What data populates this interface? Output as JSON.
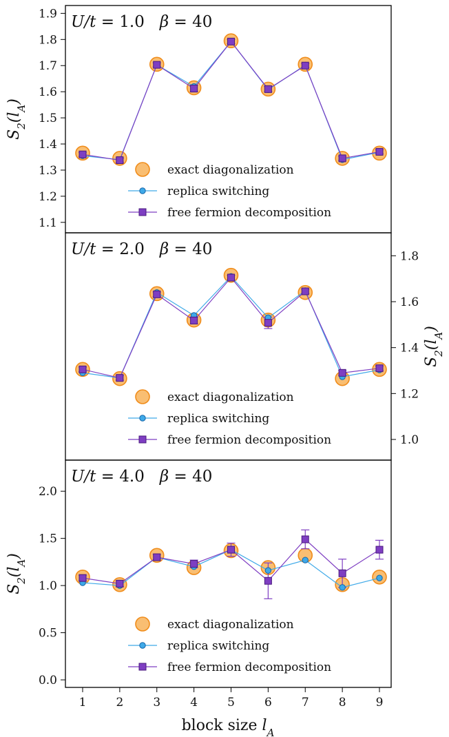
{
  "colors": {
    "ed_fill": "#f9be72",
    "ed_stroke": "#f08c1a",
    "rs_line": "#3ea9e8",
    "rs_fill": "#3ea9e8",
    "rs_stroke": "#1565a8",
    "ff_line": "#7e3ec2",
    "ff_fill": "#7e3ec2",
    "ff_stroke": "#4a1a7e"
  },
  "chart_data": [
    {
      "type": "line",
      "title": "U/t = 1.0    β = 40",
      "x": [
        1,
        2,
        3,
        4,
        5,
        6,
        7,
        8,
        9
      ],
      "ylim": [
        1.06,
        1.93
      ],
      "yticks": [
        "1.1",
        "1.2",
        "1.3",
        "1.4",
        "1.5",
        "1.6",
        "1.7",
        "1.8",
        "1.9"
      ],
      "ylabel": "S2(lA)",
      "yaxis_side": "left",
      "legend": {
        "placement": "center-bottom",
        "entries": [
          "exact diagonalization",
          "replica switching",
          "free fermion decomposition"
        ]
      },
      "series": [
        {
          "name": "exact diagonalization",
          "values": [
            1.365,
            1.345,
            1.705,
            1.615,
            1.795,
            1.61,
            1.705,
            1.345,
            1.365
          ]
        },
        {
          "name": "replica switching",
          "values": [
            1.355,
            1.34,
            1.703,
            1.62,
            1.792,
            1.608,
            1.702,
            1.34,
            1.368
          ]
        },
        {
          "name": "free fermion decomposition",
          "values": [
            1.36,
            1.338,
            1.703,
            1.612,
            1.792,
            1.61,
            1.7,
            1.345,
            1.37
          ],
          "errors": [
            0.008,
            0.008,
            0.008,
            0.012,
            0.008,
            0.01,
            0.008,
            0.008,
            0.008
          ]
        }
      ]
    },
    {
      "type": "line",
      "title": "U/t = 2.0    β = 40",
      "x": [
        1,
        2,
        3,
        4,
        5,
        6,
        7,
        8,
        9
      ],
      "ylim": [
        0.91,
        1.9
      ],
      "yticks": [
        "1.0",
        "1.2",
        "1.4",
        "1.6",
        "1.8"
      ],
      "ylabel": "S2(lA)",
      "yaxis_side": "right",
      "legend": {
        "placement": "center-bottom",
        "entries": [
          "exact diagonalization",
          "replica switching",
          "free fermion decomposition"
        ]
      },
      "series": [
        {
          "name": "exact diagonalization",
          "values": [
            1.305,
            1.265,
            1.635,
            1.52,
            1.715,
            1.52,
            1.64,
            1.265,
            1.305
          ]
        },
        {
          "name": "replica switching",
          "values": [
            1.29,
            1.268,
            1.64,
            1.54,
            1.71,
            1.53,
            1.648,
            1.273,
            1.303
          ]
        },
        {
          "name": "free fermion decomposition",
          "values": [
            1.305,
            1.268,
            1.632,
            1.518,
            1.705,
            1.508,
            1.645,
            1.29,
            1.31
          ],
          "errors": [
            0.01,
            0.01,
            0.01,
            0.015,
            0.01,
            0.025,
            0.01,
            0.01,
            0.01
          ]
        }
      ]
    },
    {
      "type": "line",
      "title": "U/t = 4.0    β = 40",
      "x": [
        1,
        2,
        3,
        4,
        5,
        6,
        7,
        8,
        9
      ],
      "xticks": [
        "1",
        "2",
        "3",
        "4",
        "5",
        "6",
        "7",
        "8",
        "9"
      ],
      "xlabel": "block size  lA",
      "ylim": [
        -0.08,
        2.33
      ],
      "yticks": [
        "0.0",
        "0.5",
        "1.0",
        "1.5",
        "2.0"
      ],
      "ylabel": "S2(lA)",
      "yaxis_side": "left",
      "legend": {
        "placement": "center-bottom",
        "entries": [
          "exact diagonalization",
          "replica switching",
          "free fermion decomposition"
        ]
      },
      "series": [
        {
          "name": "exact diagonalization",
          "values": [
            1.09,
            1.01,
            1.32,
            1.19,
            1.37,
            1.19,
            1.32,
            1.01,
            1.09
          ]
        },
        {
          "name": "replica switching",
          "values": [
            1.03,
            1.0,
            1.3,
            1.2,
            1.38,
            1.16,
            1.27,
            0.98,
            1.08
          ]
        },
        {
          "name": "free fermion decomposition",
          "values": [
            1.08,
            1.02,
            1.3,
            1.23,
            1.38,
            1.05,
            1.49,
            1.13,
            1.38
          ],
          "errors": [
            0.03,
            0.03,
            0.03,
            0.04,
            0.07,
            0.19,
            0.1,
            0.15,
            0.1
          ]
        }
      ]
    }
  ]
}
